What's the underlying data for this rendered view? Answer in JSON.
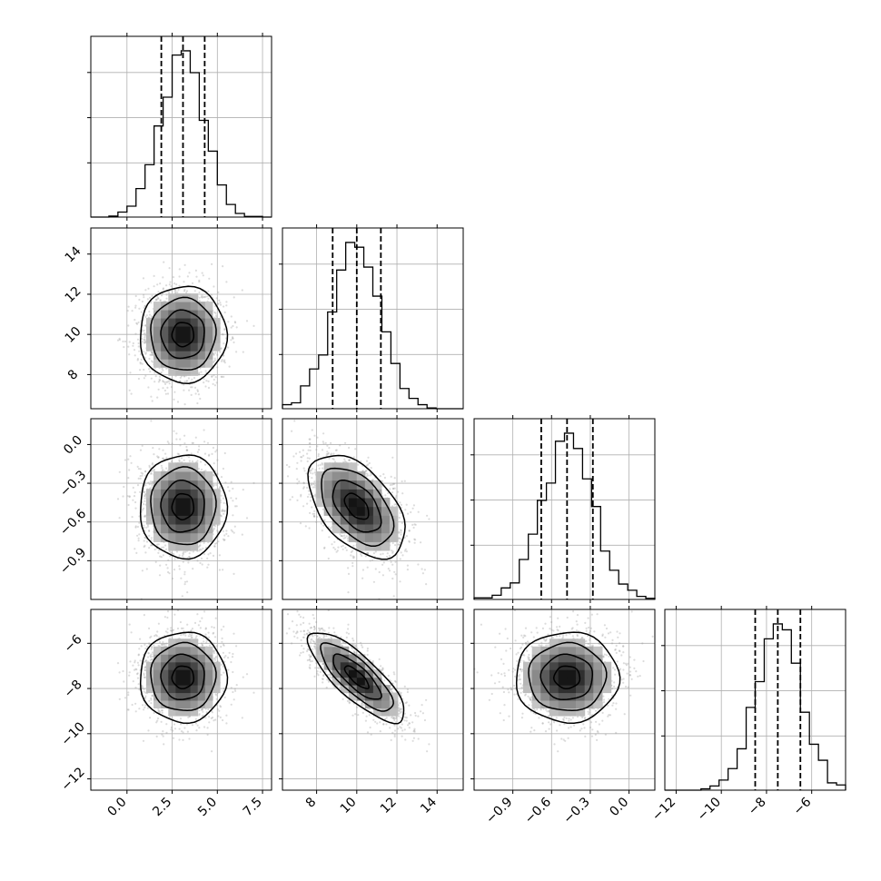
{
  "chart_data": {
    "type": "corner",
    "parameters": [
      {
        "mean": 3.1,
        "sd": 1.2,
        "range": [
          -2.0,
          8.0
        ],
        "ticks": [
          0.0,
          2.5,
          5.0,
          7.5
        ],
        "tick_labels": [
          "0.0",
          "2.5",
          "5.0",
          "7.5"
        ],
        "quantiles": [
          1.9,
          3.1,
          4.3
        ]
      },
      {
        "mean": 10.0,
        "sd": 1.2,
        "range": [
          6.3,
          15.3
        ],
        "ticks": [
          8,
          10,
          12,
          14
        ],
        "tick_labels": [
          "8",
          "10",
          "12",
          "14"
        ],
        "quantiles": [
          8.8,
          10.0,
          11.2
        ]
      },
      {
        "mean": -0.48,
        "sd": 0.2,
        "range": [
          -1.2,
          0.2
        ],
        "ticks": [
          -0.9,
          -0.6,
          -0.3,
          0.0
        ],
        "tick_labels": [
          "−0.9",
          "−0.6",
          "−0.3",
          "0.0"
        ],
        "quantiles": [
          -0.68,
          -0.48,
          -0.28
        ]
      },
      {
        "mean": -7.5,
        "sd": 1.0,
        "range": [
          -12.5,
          -4.5
        ],
        "ticks": [
          -12,
          -10,
          -8,
          -6
        ],
        "tick_labels": [
          "−12",
          "−10",
          "−8",
          "−6"
        ],
        "quantiles": [
          -8.5,
          -7.5,
          -6.5
        ]
      }
    ],
    "correlations": [
      [
        1.0,
        0.0,
        0.0,
        0.0
      ],
      [
        0.0,
        1.0,
        -0.5,
        -0.8
      ],
      [
        0.0,
        -0.5,
        1.0,
        0.0
      ],
      [
        0.0,
        -0.8,
        0.0,
        1.0
      ]
    ],
    "histogram_bins": 20,
    "contour_levels": [
      0.5,
      1.0,
      1.5,
      2.0
    ],
    "grid": true,
    "colors": {
      "contour": "#000000",
      "points": "#9a9a9a",
      "density": "#000000",
      "grid": "#b0b0b0"
    }
  }
}
